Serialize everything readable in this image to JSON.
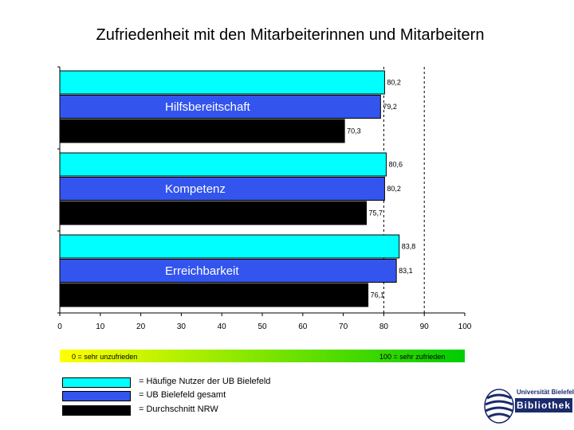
{
  "chart_data": {
    "type": "bar",
    "orientation": "horizontal",
    "title": "Zufriedenheit mit den Mitarbeiterinnen und Mitarbeitern",
    "categories": [
      "Hilfsbereitschaft",
      "Kompetenz",
      "Erreichbarkeit"
    ],
    "series": [
      {
        "name": "= Häufige Nutzer der UB Bielefeld",
        "color": "#00ffff",
        "values": [
          80.2,
          80.6,
          83.8
        ],
        "labels": [
          "80,2",
          "80,6",
          "83,8"
        ]
      },
      {
        "name": "= UB Bielefeld gesamt",
        "color": "#3355ee",
        "values": [
          79.2,
          80.2,
          83.1
        ],
        "labels": [
          "79,2",
          "80,2",
          "83,1"
        ]
      },
      {
        "name": "= Durchschnitt NRW",
        "color": "#000000",
        "values": [
          70.3,
          75.7,
          76.1
        ],
        "labels": [
          "70,3",
          "75,7",
          "76,1"
        ]
      }
    ],
    "xlim": [
      0,
      100
    ],
    "xticks": [
      "0",
      "10",
      "20",
      "30",
      "40",
      "50",
      "60",
      "70",
      "80",
      "90",
      "100"
    ],
    "reference_lines": [
      80,
      90
    ],
    "scale_bar": {
      "left_label": "0 = sehr unzufrieden",
      "right_label": "100 = sehr zufrieden"
    },
    "legend_placement": "bottom-left"
  },
  "logo": {
    "line1": "Universität Bielefeld",
    "line2": "Bibliothek"
  }
}
